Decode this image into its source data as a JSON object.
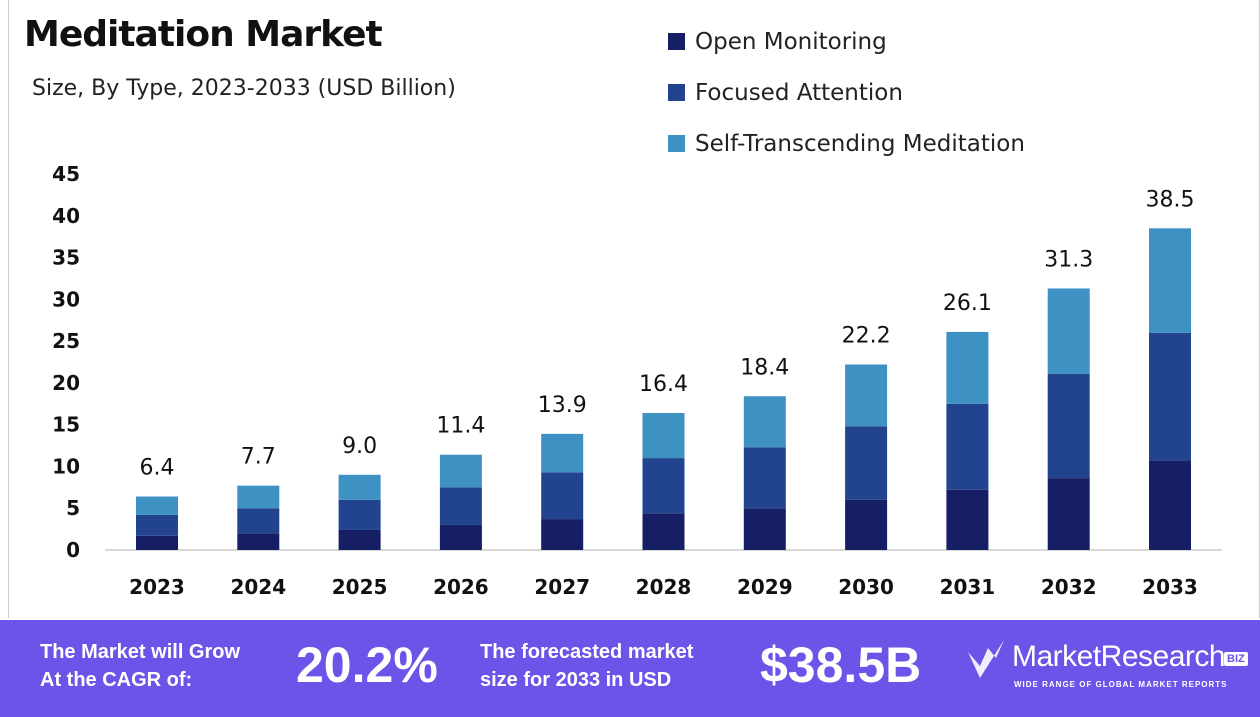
{
  "chart_data": {
    "type": "bar",
    "stacked": true,
    "title": "Meditation Market",
    "subtitle": "Size, By Type, 2023-2033 (USD Billion)",
    "categories": [
      "2023",
      "2024",
      "2025",
      "2026",
      "2027",
      "2028",
      "2029",
      "2030",
      "2031",
      "2032",
      "2033"
    ],
    "series": [
      {
        "name": "Open Monitoring",
        "color": "#161f63",
        "values": [
          1.7,
          2.0,
          2.4,
          3.0,
          3.7,
          4.4,
          5.0,
          6.0,
          7.2,
          8.6,
          10.7
        ]
      },
      {
        "name": "Focused Attention",
        "color": "#22448f",
        "values": [
          2.5,
          3.0,
          3.6,
          4.5,
          5.6,
          6.6,
          7.3,
          8.8,
          10.3,
          12.5,
          15.3
        ]
      },
      {
        "name": "Self-Transcending Meditation",
        "color": "#3d91c3",
        "values": [
          2.2,
          2.7,
          3.0,
          3.9,
          4.6,
          5.4,
          6.1,
          7.4,
          8.6,
          10.2,
          12.5
        ]
      }
    ],
    "totals": [
      "6.4",
      "7.7",
      "9.0",
      "11.4",
      "13.9",
      "16.4",
      "18.4",
      "22.2",
      "26.1",
      "31.3",
      "38.5"
    ],
    "yticks": [
      0,
      5,
      10,
      15,
      20,
      25,
      30,
      35,
      40,
      45
    ],
    "ylim": [
      0,
      45
    ],
    "grid": false,
    "legend_position": "top-right"
  },
  "banner": {
    "cagr_label_1": "The Market will Grow",
    "cagr_label_2": "At the CAGR of:",
    "cagr_value": "20.2%",
    "forecast_label_1": "The forecasted market",
    "forecast_label_2": "size for 2033 in USD",
    "forecast_value": "$38.5B",
    "logo_name": "MarketResearch",
    "logo_badge": "BIZ",
    "logo_tagline": "WIDE RANGE OF GLOBAL MARKET REPORTS",
    "background_color": "#6a55e8"
  }
}
